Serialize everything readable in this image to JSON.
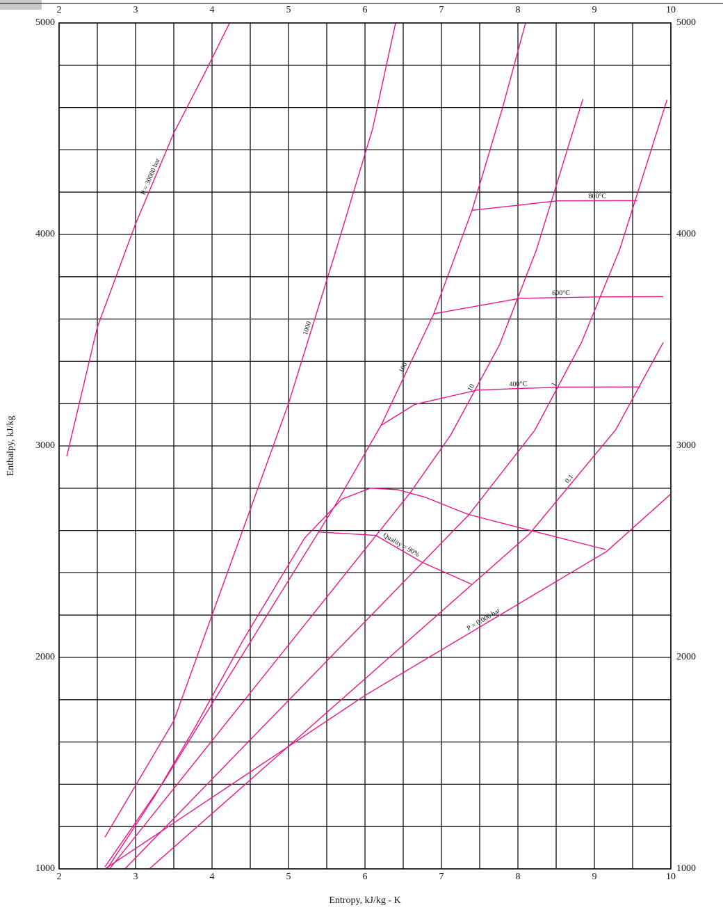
{
  "chart_data": {
    "type": "line",
    "xlabel": "Entropy, kJ/kg - K",
    "ylabel": "Enthalpy, kJ/kg",
    "xlim": [
      2,
      10
    ],
    "ylim": [
      1000,
      5000
    ],
    "xticks": [
      2,
      3,
      4,
      5,
      6,
      7,
      8,
      9,
      10
    ],
    "yticks": [
      1000,
      2000,
      3000,
      4000,
      5000
    ],
    "grid": true,
    "grid_subdivisions_x": 2,
    "grid_subdivisions_y": 5,
    "series": [
      {
        "name": "P = 30000 bar",
        "color": "#e6168a",
        "x": [
          2.1,
          2.5,
          3.0,
          3.5,
          3.9,
          4.23
        ],
        "values": [
          2950,
          3562,
          4050,
          4480,
          4760,
          5000
        ]
      },
      {
        "name": "1000",
        "color": "#e6168a",
        "x": [
          2.6,
          3.5,
          4.3,
          5.0,
          5.6,
          6.1,
          6.4
        ],
        "values": [
          1150,
          1700,
          2500,
          3200,
          3900,
          4500,
          5000
        ]
      },
      {
        "name": "100",
        "color": "#e6168a",
        "x": [
          2.6,
          3.36,
          5.62,
          6.21,
          6.9,
          7.4,
          7.8,
          8.1
        ],
        "values": [
          1010,
          1408,
          2725,
          3097,
          3625,
          4114,
          4600,
          5000
        ]
      },
      {
        "name": "10",
        "color": "#e6168a",
        "x": [
          2.66,
          6.59,
          7.12,
          7.76,
          8.24,
          8.85
        ],
        "values": [
          1000,
          2778,
          3051,
          3479,
          3925,
          4640
        ]
      },
      {
        "name": "1",
        "color": "#e6168a",
        "x": [
          2.86,
          7.36,
          8.22,
          8.83,
          9.33,
          9.95
        ],
        "values": [
          1000,
          2675,
          3074,
          3488,
          3928,
          4637
        ]
      },
      {
        "name": "0.1",
        "color": "#e6168a",
        "x": [
          3.18,
          8.15,
          9.28,
          9.9
        ],
        "values": [
          1000,
          2584,
          3077,
          3489
        ]
      },
      {
        "name": "P = 0.006 bar",
        "color": "#e6168a",
        "x": [
          2.6,
          6.0,
          9.16,
          10
        ],
        "values": [
          1000,
          1820,
          2501,
          2773
        ]
      },
      {
        "color": "#e6168a",
        "x": [
          2.61,
          3.25,
          3.78,
          4.41,
          5.21,
          5.7,
          6.07,
          6.43,
          6.79,
          7.35,
          8.07,
          9.15
        ],
        "values": [
          990,
          1344,
          1671,
          2084,
          2564,
          2749,
          2800,
          2793,
          2757,
          2676,
          2609,
          2510
        ]
      },
      {
        "name": "Quality = 90%",
        "color": "#e6168a",
        "x": [
          5.39,
          6.14,
          6.75,
          7.4
        ],
        "values": [
          2593,
          2577,
          2449,
          2345
        ]
      },
      {
        "name": "400°C",
        "color": "#e6168a",
        "x": [
          6.21,
          6.65,
          7.47,
          8.54,
          9.6
        ],
        "values": [
          3097,
          3196,
          3264,
          3278,
          3279
        ]
      },
      {
        "name": "600°C",
        "color": "#e6168a",
        "x": [
          6.9,
          8.03,
          9.1,
          9.9
        ],
        "values": [
          3625,
          3698,
          3705,
          3706
        ]
      },
      {
        "name": "800°C",
        "color": "#e6168a",
        "x": [
          7.4,
          8.52,
          9.56
        ],
        "values": [
          4114,
          4159,
          4160
        ]
      }
    ]
  }
}
